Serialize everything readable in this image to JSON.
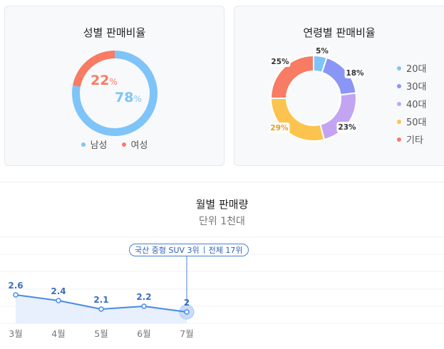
{
  "gender_card": {
    "title": "성별 판매비율",
    "female_pct": "22",
    "male_pct": "78",
    "pct_sign": "%",
    "legend": [
      {
        "label": "남성",
        "color": "#7fc4f8"
      },
      {
        "label": "여성",
        "color": "#f87b63"
      }
    ]
  },
  "age_card": {
    "title": "연령별 판매비율",
    "legend": [
      {
        "label": "20대",
        "color": "#7fc4f8"
      },
      {
        "label": "30대",
        "color": "#8a96f5"
      },
      {
        "label": "40대",
        "color": "#c3a4f3"
      },
      {
        "label": "50대",
        "color": "#fcc44e"
      },
      {
        "label": "기타",
        "color": "#f87b63"
      }
    ]
  },
  "monthly": {
    "title": "월별 판매량",
    "unit": "단위 1천대",
    "callout_left": "국산 중형 SUV 3위",
    "callout_right": "전체 17위",
    "line_color": "#4a8ae8"
  },
  "chart_data": [
    {
      "type": "pie",
      "title": "성별 판매비율",
      "labels": [
        "남성",
        "여성"
      ],
      "values": [
        78,
        22
      ],
      "colors": [
        "#7fc4f8",
        "#f87b63"
      ]
    },
    {
      "type": "pie",
      "title": "연령별 판매비율",
      "labels": [
        "20대",
        "30대",
        "40대",
        "50대",
        "기타"
      ],
      "values": [
        5,
        18,
        23,
        29,
        25
      ],
      "value_labels": [
        "5%",
        "18%",
        "23%",
        "29%",
        "25%"
      ],
      "colors": [
        "#7fc4f8",
        "#8a96f5",
        "#c3a4f3",
        "#fcc44e",
        "#f87b63"
      ]
    },
    {
      "type": "line",
      "title": "월별 판매량",
      "subtitle": "단위 1천대",
      "categories": [
        "3월",
        "4월",
        "5월",
        "6월",
        "7월"
      ],
      "values": [
        2.6,
        2.4,
        2.1,
        2.2,
        2
      ],
      "value_labels": [
        "2.6",
        "2.4",
        "2.1",
        "2.2",
        "2"
      ]
    }
  ]
}
